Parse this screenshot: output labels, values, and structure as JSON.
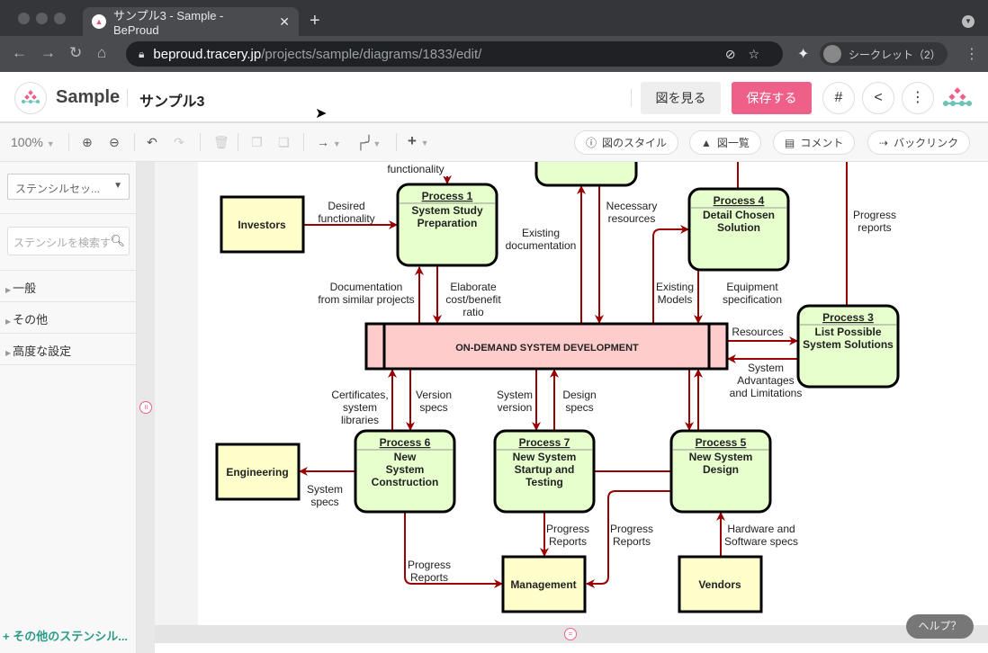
{
  "browser": {
    "tab_title": "サンプル3 - Sample - BeProud",
    "new_tab": "+",
    "url_host": "beproud.tracery.jp",
    "url_path": "/projects/sample/diagrams/1833/edit/",
    "incognito_label": "シークレット（2）"
  },
  "app": {
    "project": "Sample",
    "diagram_name": "サンプル3",
    "view_button": "図を見る",
    "save_button": "保存する",
    "accent": "#ee6088"
  },
  "toolbar": {
    "zoom": "100%",
    "style_button": "図のスタイル",
    "list_button": "図一覧",
    "comment_button": "コメント",
    "backlink_button": "バックリンク"
  },
  "sidebar": {
    "stencil_set": "ステンシルセッ...",
    "search_placeholder": "ステンシルを検索す",
    "categories": [
      "一般",
      "その他",
      "高度な設定"
    ],
    "more_stencils": "+ その他のステンシル..."
  },
  "help": "ヘルプ？",
  "diagram": {
    "colors": {
      "arrow": "#990000",
      "process": "#e6ffcc",
      "entity": "#ffffcc",
      "store": "#ffcccc"
    },
    "entities": [
      {
        "id": "investors",
        "label": "Investors"
      },
      {
        "id": "engineering",
        "label": "Engineering"
      },
      {
        "id": "management",
        "label": "Management"
      },
      {
        "id": "vendors",
        "label": "Vendors"
      }
    ],
    "processes": [
      {
        "id": "p1",
        "title": "Process 1",
        "lines": [
          "System Study",
          "Preparation"
        ]
      },
      {
        "id": "p4",
        "title": "Process 4",
        "lines": [
          "Detail Chosen",
          "Solution"
        ]
      },
      {
        "id": "p3",
        "title": "Process 3",
        "lines": [
          "List Possible",
          "System Solutions"
        ]
      },
      {
        "id": "p6",
        "title": "Process 6",
        "lines": [
          "New",
          "System",
          "Construction"
        ]
      },
      {
        "id": "p7",
        "title": "Process 7",
        "lines": [
          "New System",
          "Startup and",
          "Testing"
        ]
      },
      {
        "id": "p5",
        "title": "Process 5",
        "lines": [
          "New System",
          "Design"
        ]
      }
    ],
    "store": "ON-DEMAND SYSTEM DEVELOPMENT",
    "flow_labels": [
      [
        "functionality"
      ],
      [
        "Desired",
        "functionality"
      ],
      [
        "Documentation",
        "from similar projects"
      ],
      [
        "Elaborate",
        "cost/benefit",
        "ratio"
      ],
      [
        "Existing",
        "documentation"
      ],
      [
        "Necessary",
        "resources"
      ],
      [
        "Existing",
        "Models"
      ],
      [
        "Equipment",
        "specification"
      ],
      [
        "Progress",
        "reports"
      ],
      [
        "Resources"
      ],
      [
        "System",
        "Advantages",
        "and Limitations"
      ],
      [
        "Certificates,",
        "system",
        "libraries"
      ],
      [
        "Version",
        "specs"
      ],
      [
        "System",
        "version"
      ],
      [
        "Design",
        "specs"
      ],
      [
        "System",
        "specs"
      ],
      [
        "Progress",
        "Reports"
      ],
      [
        "Progress",
        "Reports"
      ],
      [
        "Progress",
        "Reports"
      ],
      [
        "Hardware and",
        "Software specs"
      ]
    ]
  }
}
